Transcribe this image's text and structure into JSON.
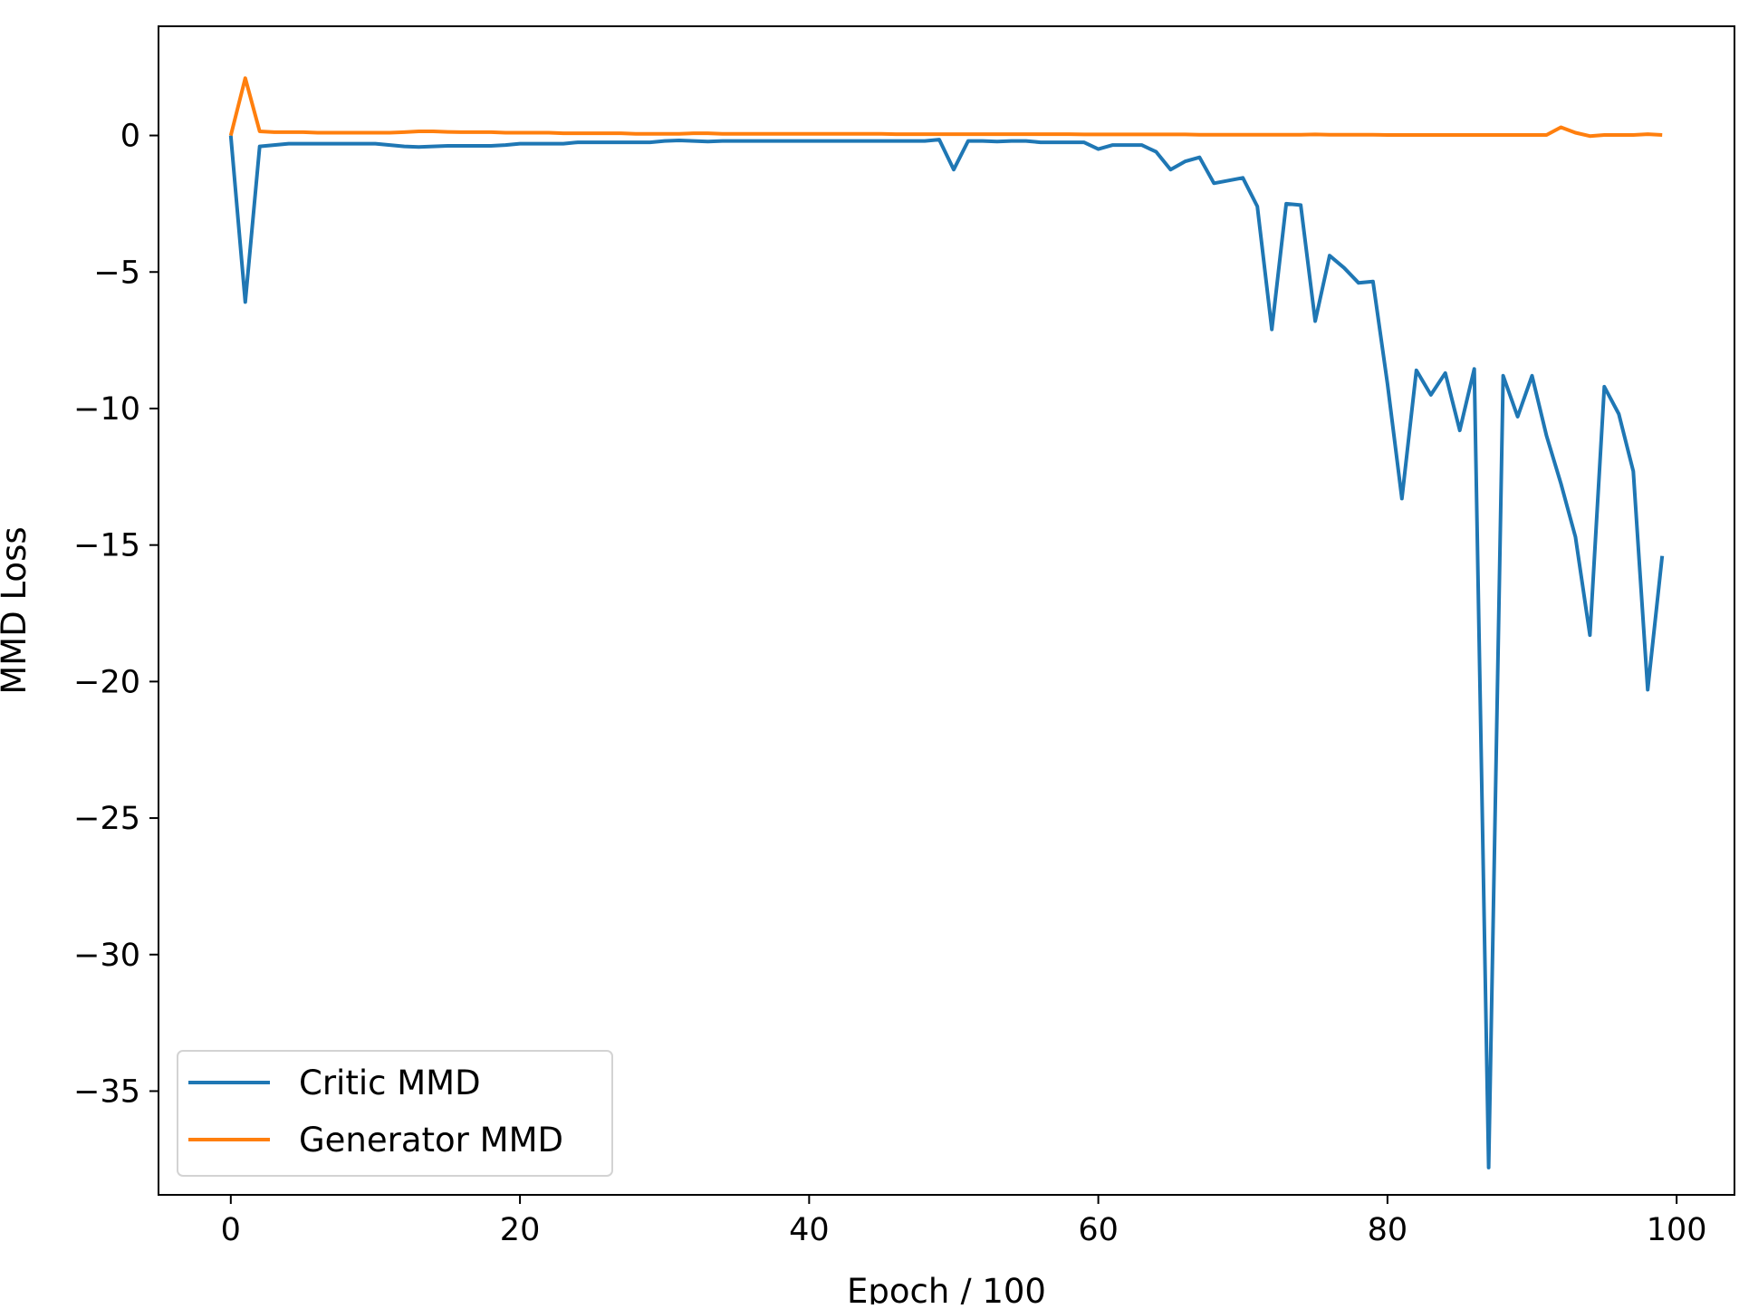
{
  "chart_data": {
    "type": "line",
    "xlabel": "Epoch / 100",
    "ylabel": "MMD Loss",
    "xlim": [
      -5,
      104
    ],
    "ylim": [
      -38.8,
      4.0
    ],
    "xticks": [
      0,
      20,
      40,
      60,
      80,
      100
    ],
    "xtick_labels": [
      "0",
      "20",
      "40",
      "60",
      "80",
      "100"
    ],
    "yticks": [
      0,
      -5,
      -10,
      -15,
      -20,
      -25,
      -30,
      -35
    ],
    "ytick_labels": [
      "0",
      "−5",
      "−10",
      "−15",
      "−20",
      "−25",
      "−30",
      "−35"
    ],
    "grid": false,
    "legend_position": "lower-left",
    "x": [
      0,
      1,
      2,
      3,
      4,
      5,
      6,
      7,
      8,
      9,
      10,
      11,
      12,
      13,
      14,
      15,
      16,
      17,
      18,
      19,
      20,
      21,
      22,
      23,
      24,
      25,
      26,
      27,
      28,
      29,
      30,
      31,
      32,
      33,
      34,
      35,
      36,
      37,
      38,
      39,
      40,
      41,
      42,
      43,
      44,
      45,
      46,
      47,
      48,
      49,
      50,
      51,
      52,
      53,
      54,
      55,
      56,
      57,
      58,
      59,
      60,
      61,
      62,
      63,
      64,
      65,
      66,
      67,
      68,
      69,
      70,
      71,
      72,
      73,
      74,
      75,
      76,
      77,
      78,
      79,
      80,
      81,
      82,
      83,
      84,
      85,
      86,
      87,
      88,
      89,
      90,
      91,
      92,
      93,
      94,
      95,
      96,
      97,
      98,
      99
    ],
    "series": [
      {
        "name": "Critic MMD",
        "color": "#1f77b4",
        "values": [
          0,
          -6.1,
          -0.4,
          -0.35,
          -0.3,
          -0.3,
          -0.3,
          -0.3,
          -0.3,
          -0.3,
          -0.3,
          -0.35,
          -0.4,
          -0.42,
          -0.4,
          -0.38,
          -0.38,
          -0.38,
          -0.38,
          -0.35,
          -0.3,
          -0.3,
          -0.3,
          -0.3,
          -0.25,
          -0.25,
          -0.25,
          -0.25,
          -0.25,
          -0.25,
          -0.2,
          -0.18,
          -0.2,
          -0.22,
          -0.2,
          -0.2,
          -0.2,
          -0.2,
          -0.2,
          -0.2,
          -0.2,
          -0.2,
          -0.2,
          -0.2,
          -0.2,
          -0.2,
          -0.2,
          -0.2,
          -0.2,
          -0.15,
          -1.25,
          -0.2,
          -0.2,
          -0.22,
          -0.2,
          -0.2,
          -0.25,
          -0.25,
          -0.25,
          -0.25,
          -0.5,
          -0.35,
          -0.35,
          -0.35,
          -0.6,
          -1.25,
          -0.95,
          -0.8,
          -1.75,
          -1.65,
          -1.55,
          -2.6,
          -7.1,
          -2.5,
          -2.55,
          -6.8,
          -4.4,
          -4.85,
          -5.4,
          -5.35,
          -9.1,
          -13.3,
          -8.6,
          -9.5,
          -8.7,
          -10.8,
          -8.55,
          -37.8,
          -8.8,
          -10.3,
          -8.8,
          -11.0,
          -12.75,
          -14.7,
          -18.3,
          -9.2,
          -10.2,
          -12.3,
          -20.3,
          -15.4
        ]
      },
      {
        "name": "Generator MMD",
        "color": "#ff7f0e",
        "values": [
          0,
          2.1,
          0.15,
          0.12,
          0.12,
          0.12,
          0.1,
          0.1,
          0.1,
          0.1,
          0.1,
          0.1,
          0.12,
          0.15,
          0.15,
          0.13,
          0.12,
          0.12,
          0.12,
          0.1,
          0.1,
          0.1,
          0.1,
          0.08,
          0.08,
          0.08,
          0.08,
          0.08,
          0.06,
          0.06,
          0.06,
          0.06,
          0.08,
          0.08,
          0.06,
          0.06,
          0.06,
          0.06,
          0.06,
          0.06,
          0.06,
          0.06,
          0.06,
          0.06,
          0.06,
          0.06,
          0.05,
          0.05,
          0.05,
          0.05,
          0.05,
          0.05,
          0.05,
          0.05,
          0.05,
          0.05,
          0.05,
          0.05,
          0.05,
          0.04,
          0.04,
          0.04,
          0.04,
          0.04,
          0.04,
          0.04,
          0.04,
          0.03,
          0.03,
          0.03,
          0.03,
          0.03,
          0.03,
          0.03,
          0.03,
          0.04,
          0.03,
          0.03,
          0.03,
          0.03,
          0.02,
          0.02,
          0.02,
          0.02,
          0.02,
          0.02,
          0.02,
          0.02,
          0.02,
          0.02,
          0.02,
          0.02,
          0.3,
          0.1,
          -0.02,
          0.02,
          0.02,
          0.02,
          0.05,
          0.02
        ]
      }
    ]
  }
}
